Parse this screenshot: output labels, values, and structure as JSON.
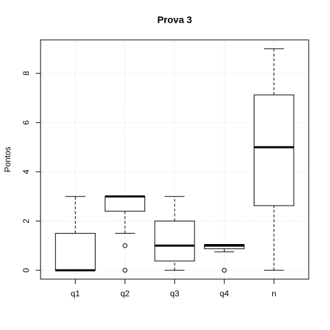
{
  "chart_data": {
    "type": "boxplot",
    "title": "Prova 3",
    "ylabel": "Pontos",
    "categories": [
      "q1",
      "q2",
      "q3",
      "q4",
      "n"
    ],
    "boxes": [
      {
        "whisker_low": 0,
        "q1": 0,
        "median": 0,
        "q3": 1.5,
        "whisker_high": 3,
        "outliers": []
      },
      {
        "whisker_low": 1.5,
        "q1": 2.4,
        "median": 3,
        "q3": 3,
        "whisker_high": 3,
        "outliers": [
          1,
          0
        ]
      },
      {
        "whisker_low": 0,
        "q1": 0.375,
        "median": 1,
        "q3": 2,
        "whisker_high": 3,
        "outliers": []
      },
      {
        "whisker_low": 0.75,
        "q1": 0.875,
        "median": 1,
        "q3": 1.05,
        "whisker_high": 1.05,
        "outliers": [
          0
        ]
      },
      {
        "whisker_low": 0,
        "q1": 2.625,
        "median": 5,
        "q3": 7.125,
        "whisker_high": 9,
        "outliers": []
      }
    ],
    "color": "#000000",
    "ylim": [
      -0.36,
      9.36
    ],
    "yticks": [
      0,
      2,
      4,
      6,
      8
    ],
    "grid": true
  }
}
